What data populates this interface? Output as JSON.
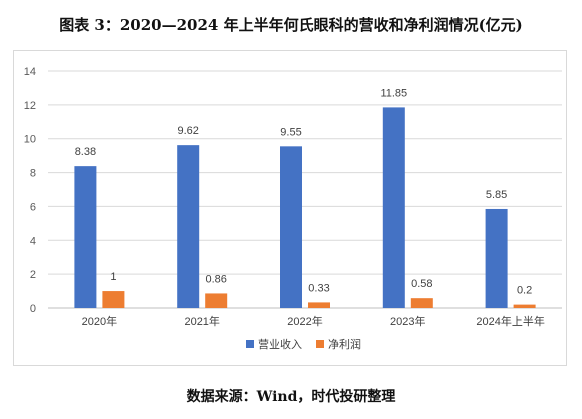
{
  "title": "图表 3：2020—2024 年上半年何氏眼科的营收和净利润情况(亿元)",
  "source": "数据来源：Wind，时代投研整理",
  "chart_data": {
    "type": "bar",
    "categories": [
      "2020年",
      "2021年",
      "2022年",
      "2023年",
      "2024年上半年"
    ],
    "series": [
      {
        "name": "营业收入",
        "color": "#4472C4",
        "values": [
          8.38,
          9.62,
          9.55,
          11.85,
          5.85
        ],
        "labels": [
          "8.38",
          "9.62",
          "9.55",
          "11.85",
          "5.85"
        ]
      },
      {
        "name": "净利润",
        "color": "#ED7D31",
        "values": [
          1,
          0.86,
          0.33,
          0.58,
          0.2
        ],
        "labels": [
          "1",
          "0.86",
          "0.33",
          "0.58",
          "0.2"
        ]
      }
    ],
    "ylim": [
      0,
      14
    ],
    "yticks": [
      "0",
      "2",
      "4",
      "6",
      "8",
      "10",
      "12",
      "14"
    ],
    "grid": true,
    "legend": "bottom-center"
  }
}
